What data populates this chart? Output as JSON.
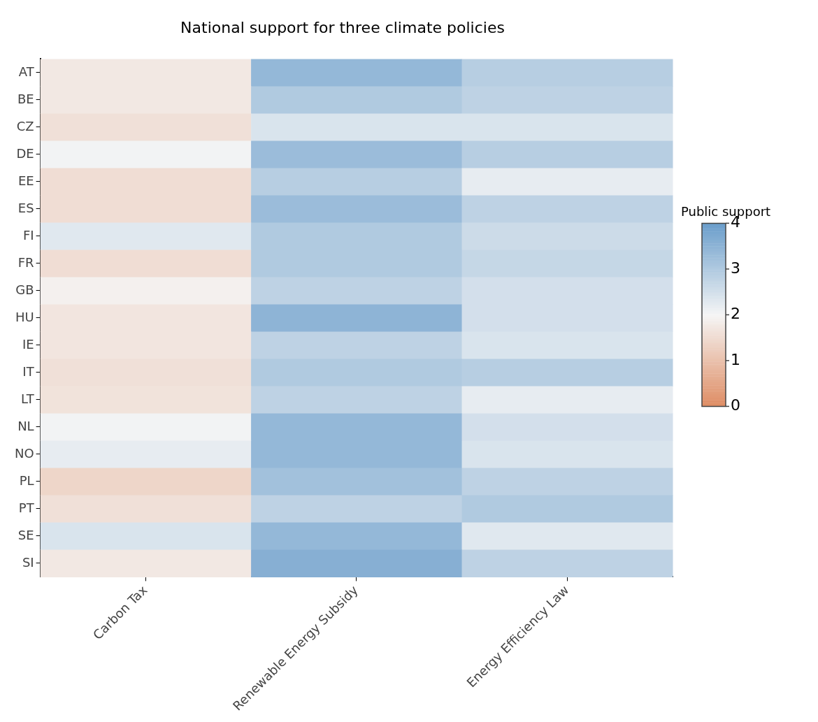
{
  "chart_data": {
    "type": "heatmap",
    "title": "National support for three climate policies",
    "clabel": "Public support",
    "categories": [
      "Carbon Tax",
      "Renewable Energy Subsidy",
      "Energy Efficiency Law"
    ],
    "y_categories": [
      "AT",
      "BE",
      "CZ",
      "DE",
      "EE",
      "ES",
      "FI",
      "FR",
      "GB",
      "HU",
      "IE",
      "IT",
      "LT",
      "NL",
      "NO",
      "PL",
      "PT",
      "SE",
      "SI"
    ],
    "cells": [
      [
        1.75,
        3.4,
        2.9
      ],
      [
        1.75,
        3.0,
        2.8
      ],
      [
        1.6,
        2.4,
        2.4
      ],
      [
        2.05,
        3.3,
        2.9
      ],
      [
        1.55,
        2.9,
        2.2
      ],
      [
        1.55,
        3.3,
        2.8
      ],
      [
        2.3,
        3.0,
        2.6
      ],
      [
        1.55,
        3.0,
        2.7
      ],
      [
        1.9,
        2.8,
        2.5
      ],
      [
        1.7,
        3.5,
        2.5
      ],
      [
        1.7,
        2.8,
        2.4
      ],
      [
        1.6,
        3.0,
        2.9
      ],
      [
        1.65,
        2.8,
        2.2
      ],
      [
        2.05,
        3.4,
        2.5
      ],
      [
        2.2,
        3.4,
        2.4
      ],
      [
        1.4,
        3.2,
        2.8
      ],
      [
        1.6,
        2.8,
        3.0
      ],
      [
        2.4,
        3.4,
        2.3
      ],
      [
        1.75,
        3.6,
        2.8
      ]
    ],
    "clim": [
      0,
      4
    ],
    "cticks": [
      0,
      1,
      2,
      3,
      4
    ]
  }
}
